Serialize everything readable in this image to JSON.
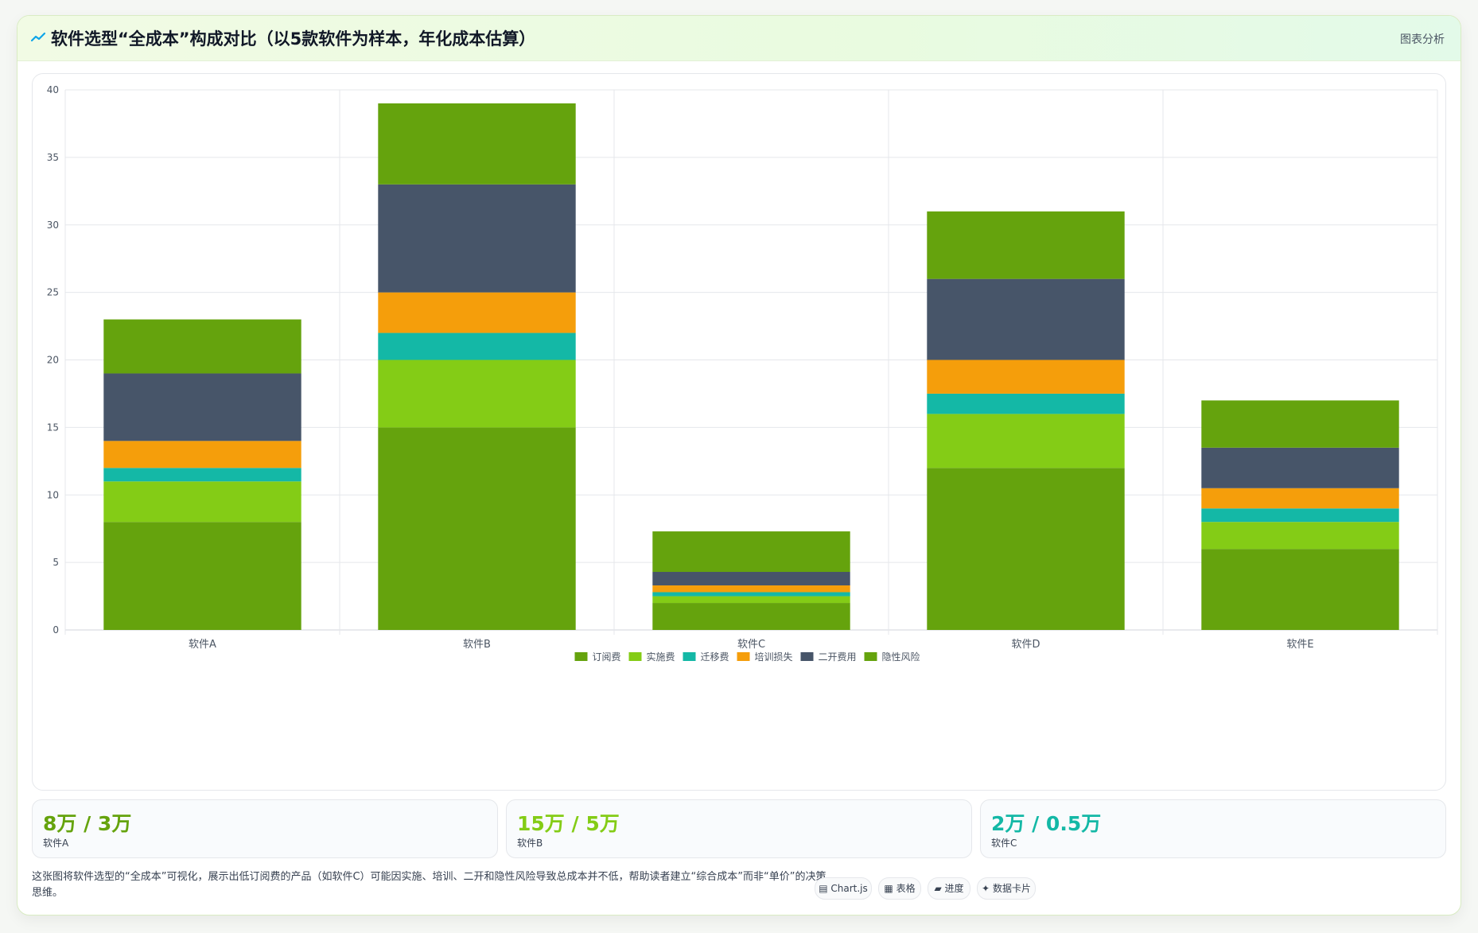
{
  "header": {
    "title": "软件选型“全成本”构成对比（以5款软件为样本，年化成本估算）",
    "action_label": "图表分析"
  },
  "chart_data": {
    "type": "bar",
    "stacked": true,
    "categories": [
      "软件A",
      "软件B",
      "软件C",
      "软件D",
      "软件E"
    ],
    "series": [
      {
        "name": "订阅费",
        "color": "#65a30d",
        "values": [
          8,
          15,
          2,
          12,
          6
        ]
      },
      {
        "name": "实施费",
        "color": "#84cc16",
        "values": [
          3,
          5,
          0.5,
          4,
          2
        ]
      },
      {
        "name": "迁移费",
        "color": "#14b8a6",
        "values": [
          1,
          2,
          0.3,
          1.5,
          1
        ]
      },
      {
        "name": "培训损失",
        "color": "#f59e0b",
        "values": [
          2,
          3,
          0.5,
          2.5,
          1.5
        ]
      },
      {
        "name": "二开费用",
        "color": "#475569",
        "values": [
          5,
          8,
          1,
          6,
          3
        ]
      },
      {
        "name": "隐性风险",
        "color": "#65a30d",
        "values": [
          4,
          6,
          3,
          5,
          3.5
        ]
      }
    ],
    "ylim": [
      0,
      40
    ],
    "yticks": [
      0,
      5,
      10,
      15,
      20,
      25,
      30,
      35,
      40
    ],
    "grid": true,
    "legend": "bottom-center"
  },
  "stats": [
    {
      "value": "8万 / 3万",
      "label": "软件A",
      "color": "#65a30d"
    },
    {
      "value": "15万 / 5万",
      "label": "软件B",
      "color": "#84cc16"
    },
    {
      "value": "2万 / 0.5万",
      "label": "软件C",
      "color": "#14b8a6"
    }
  ],
  "description": "这张图将软件选型的“全成本”可视化，展示出低订阅费的产品（如软件C）可能因实施、培训、二开和隐性风险导致总成本并不低，帮助读者建立“综合成本”而非“单价”的决策思维。",
  "chips": [
    {
      "label": "Chart.js",
      "icon": "chart-icon"
    },
    {
      "label": "表格",
      "icon": "table-icon"
    },
    {
      "label": "进度",
      "icon": "progress-icon"
    },
    {
      "label": "数据卡片",
      "icon": "card-icon"
    }
  ]
}
